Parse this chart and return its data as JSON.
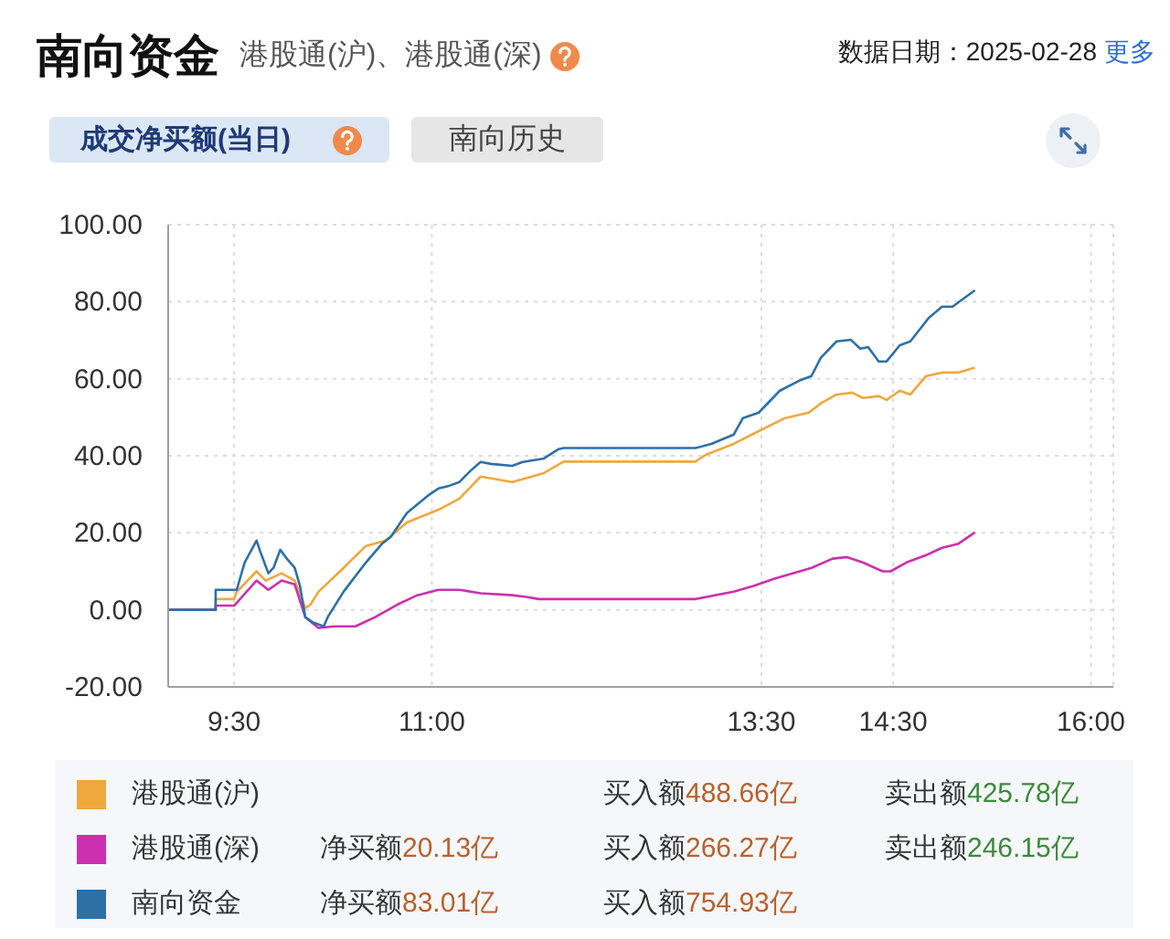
{
  "chart_data": {
    "type": "line",
    "title": "南向资金",
    "subtitle": "港股通(沪)、港股通(深)",
    "annotations": [
      "数据日期：2025-02-28",
      "更多",
      "成交净买额(当日)",
      "南向历史",
      "买入额488.66亿",
      "卖出额425.78亿",
      "净买额20.13亿",
      "买入额266.27亿",
      "卖出额246.15亿",
      "净买额83.01亿",
      "买入额754.93亿"
    ],
    "series": [
      {
        "name": "港股通(沪)",
        "color": "#eea83e",
        "x": [
          9.0,
          9.36,
          9.36,
          9.5,
          9.52,
          9.67,
          9.74,
          9.86,
          9.96,
          10.04,
          10.08,
          10.14,
          10.33,
          10.5,
          10.65,
          10.81,
          11.05,
          11.21,
          11.37,
          11.61,
          11.85,
          12.0,
          13.0,
          13.08,
          13.29,
          13.48,
          13.68,
          13.86,
          13.95,
          14.07,
          14.19,
          14.27,
          14.39,
          14.45,
          14.55,
          14.63,
          14.75,
          14.87,
          14.99,
          15.12
        ],
        "values": [
          0,
          0,
          2.8,
          2.8,
          4.7,
          10.0,
          7.6,
          9.5,
          7.6,
          0.5,
          1.4,
          4.7,
          10.9,
          16.6,
          18.0,
          22.7,
          26.0,
          28.9,
          34.6,
          33.2,
          35.5,
          38.5,
          38.5,
          40.3,
          43.1,
          46.4,
          49.8,
          51.2,
          53.6,
          55.9,
          56.4,
          55.0,
          55.5,
          54.5,
          56.9,
          55.9,
          60.7,
          61.6,
          61.6,
          62.9
        ]
      },
      {
        "name": "港股通(深)",
        "color": "#cc30b0",
        "x": [
          9.0,
          9.36,
          9.36,
          9.5,
          9.67,
          9.76,
          9.86,
          9.96,
          10.04,
          10.14,
          10.26,
          10.42,
          10.57,
          10.74,
          10.89,
          11.05,
          11.21,
          11.37,
          11.61,
          11.73,
          11.81,
          12.0,
          13.0,
          13.29,
          13.44,
          13.6,
          13.88,
          14.04,
          14.15,
          14.27,
          14.42,
          14.48,
          14.6,
          14.75,
          14.87,
          14.99,
          15.12
        ],
        "values": [
          0,
          0,
          1.1,
          1.1,
          7.6,
          5.2,
          7.6,
          6.6,
          -1.9,
          -4.7,
          -4.3,
          -4.3,
          -1.9,
          1.4,
          3.8,
          5.2,
          5.2,
          4.3,
          3.8,
          3.3,
          2.8,
          2.8,
          2.8,
          4.7,
          6.2,
          8.1,
          10.9,
          13.3,
          13.7,
          12.3,
          10.0,
          10.0,
          12.3,
          14.2,
          16.1,
          17.1,
          20.1
        ]
      },
      {
        "name": "南向资金",
        "color": "#2e70a6",
        "x": [
          9.0,
          9.36,
          9.36,
          9.52,
          9.58,
          9.67,
          9.7,
          9.76,
          9.8,
          9.85,
          9.9,
          9.96,
          10.0,
          10.04,
          10.1,
          10.18,
          10.21,
          10.33,
          10.5,
          10.62,
          10.69,
          10.81,
          10.98,
          11.05,
          11.13,
          11.21,
          11.29,
          11.37,
          11.45,
          11.61,
          11.69,
          11.85,
          11.96,
          12.0,
          13.0,
          13.12,
          13.29,
          13.36,
          13.48,
          13.64,
          13.8,
          13.88,
          13.95,
          14.07,
          14.18,
          14.25,
          14.31,
          14.39,
          14.45,
          14.55,
          14.63,
          14.77,
          14.87,
          14.95,
          15.12
        ],
        "values": [
          0,
          0,
          5.2,
          5.2,
          12.3,
          18.0,
          15.0,
          9.5,
          11.0,
          15.6,
          13.3,
          10.9,
          6.2,
          -1.9,
          -3.3,
          -4.3,
          -1.9,
          4.7,
          12.3,
          17.1,
          19.0,
          25.1,
          29.9,
          31.5,
          32.2,
          33.2,
          36.0,
          38.4,
          37.9,
          37.4,
          38.4,
          39.3,
          41.7,
          42.0,
          42.0,
          43.1,
          45.5,
          49.8,
          51.2,
          56.9,
          59.7,
          60.7,
          65.4,
          69.7,
          70.1,
          67.8,
          68.2,
          64.5,
          64.5,
          68.7,
          69.7,
          75.8,
          78.7,
          78.7,
          83.0
        ]
      }
    ],
    "xlim": [
      9,
      16.17
    ],
    "xticks": [
      {
        "value": 9.5,
        "label": "9:30"
      },
      {
        "value": 11,
        "label": "11:00"
      },
      {
        "value": 13.5,
        "label": "13:30"
      },
      {
        "value": 14.5,
        "label": "14:30"
      },
      {
        "value": 16,
        "label": "16:00"
      }
    ],
    "ylim": [
      -20,
      100
    ],
    "yticks": [
      {
        "value": -20,
        "label": "-20.00"
      },
      {
        "value": 0,
        "label": "0.00"
      },
      {
        "value": 20,
        "label": "20.00"
      },
      {
        "value": 40,
        "label": "40.00"
      },
      {
        "value": 60,
        "label": "60.00"
      },
      {
        "value": 80,
        "label": "80.00"
      },
      {
        "value": 100,
        "label": "100.00"
      }
    ],
    "grid": true,
    "legend": "bottom",
    "marker": "none",
    "line_style": "solid"
  }
}
